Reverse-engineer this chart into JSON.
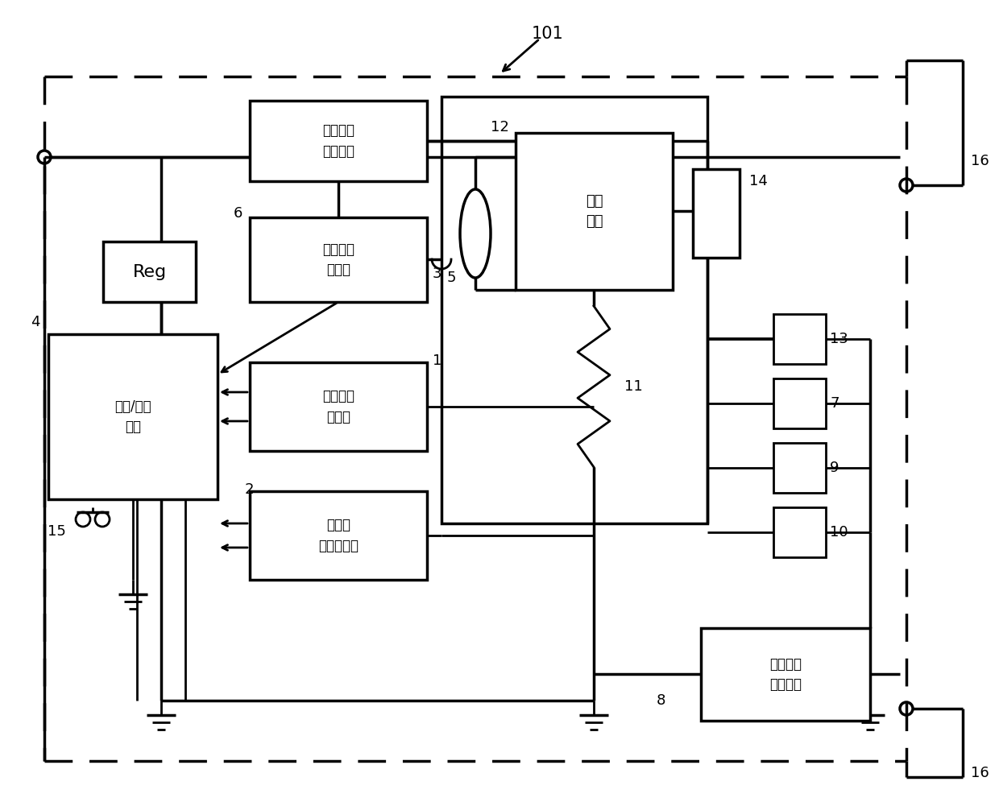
{
  "bg_color": "#ffffff",
  "fig_width": 12.4,
  "fig_height": 9.91,
  "dpi": 100,
  "labels": {
    "label_101": "101",
    "label_16_top": "16",
    "label_16_bot": "16",
    "label_6": "6",
    "label_5": "5",
    "label_4": "4",
    "label_3": "3",
    "label_12": "12",
    "label_14": "14",
    "label_13": "13",
    "label_7": "7",
    "label_9": "9",
    "label_10": "10",
    "label_1": "1",
    "label_2": "2",
    "label_11": "11",
    "label_8": "8",
    "label_15": "15",
    "box_charge_current": "充电电流\n截止部件",
    "box_charge_stop_ctrl": "充电截止\n控制部",
    "box_battery": "二次\n电池",
    "box_calc_ctrl": "运算/控制\n电路",
    "box_voltage_detect": "电池电压\n检测部",
    "box_current_detect": "充放电\n电流检测部",
    "box_discharge_stop": "放电电路\n截止部件",
    "box_reg": "Reg"
  }
}
